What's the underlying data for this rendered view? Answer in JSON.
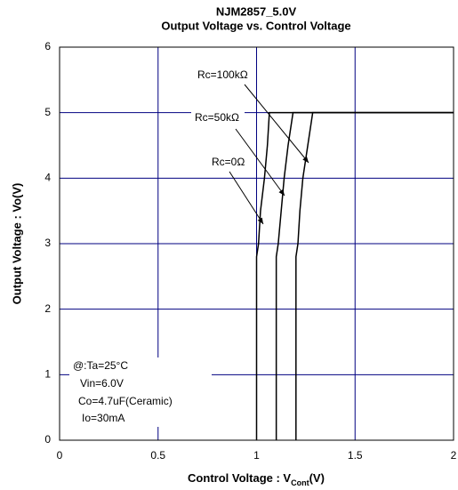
{
  "chart_data": {
    "type": "line",
    "title": [
      "NJM2857_5.0V",
      "Output Voltage vs. Control Voltage"
    ],
    "x_label": [
      "Control Voltage : V",
      "Cont",
      "(V)"
    ],
    "y_label": "Output Voltage : Vo(V)",
    "xlim": [
      0,
      2
    ],
    "ylim": [
      0,
      6
    ],
    "xticks": [
      0,
      0.5,
      1,
      1.5,
      2
    ],
    "yticks": [
      0,
      1,
      2,
      3,
      4,
      5,
      6
    ],
    "grid": true,
    "grid_color": "#000080",
    "series": [
      {
        "name": "Rc=0Ω",
        "color": "#000000",
        "x": [
          1.0,
          1.0,
          1.01,
          1.02,
          1.04,
          1.055,
          1.065,
          2
        ],
        "values": [
          0,
          2.8,
          3,
          3.5,
          4,
          4.5,
          5,
          5
        ]
      },
      {
        "name": "Rc=50kΩ",
        "color": "#000000",
        "x": [
          1.1,
          1.1,
          1.11,
          1.125,
          1.14,
          1.16,
          1.185,
          2
        ],
        "values": [
          0,
          2.8,
          3,
          3.5,
          4,
          4.5,
          5,
          5
        ]
      },
      {
        "name": "Rc=100kΩ",
        "color": "#000000",
        "x": [
          1.2,
          1.2,
          1.21,
          1.22,
          1.235,
          1.26,
          1.285,
          2
        ],
        "values": [
          0,
          2.8,
          3,
          3.5,
          4,
          4.5,
          5,
          5
        ]
      }
    ],
    "conditions": [
      "@:Ta=25°C",
      "Vin=6.0V",
      "Co=4.7uF(Ceramic)",
      "Io=30mA"
    ]
  }
}
